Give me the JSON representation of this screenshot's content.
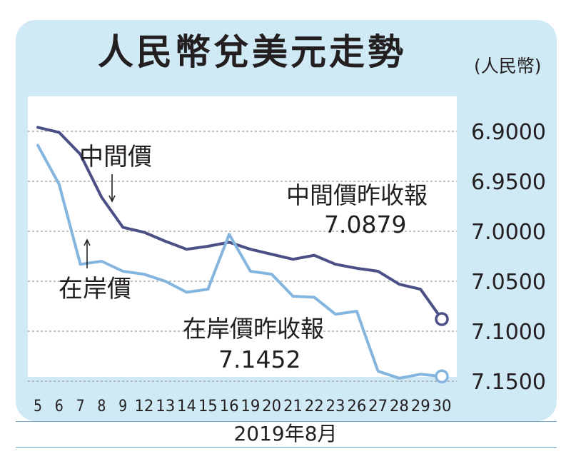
{
  "title": "人民幣兌美元走勢",
  "unit_label": "(人民幣)",
  "xlabel": "2019年8月",
  "colors": {
    "background": "#cfe9f5",
    "mid_price": "#4a4f86",
    "offshore": "#83b5de",
    "grid": "#9a9a9a"
  },
  "annotations": {
    "mid_label": "中間價",
    "offshore_label": "在岸價",
    "mid_close_label": "中間價昨收報",
    "mid_close_value": "7.0879",
    "offshore_close_label": "在岸價昨收報",
    "offshore_close_value": "7.1452"
  },
  "chart_data": {
    "type": "line",
    "title": "人民幣兌美元走勢",
    "xlabel": "2019年8月",
    "ylabel": "(人民幣)",
    "y_inverted": true,
    "ylim": [
      6.88,
      7.17
    ],
    "yticks": [
      "6.9000",
      "6.9500",
      "7.0000",
      "7.0500",
      "7.1000",
      "7.1500"
    ],
    "categories": [
      "5",
      "6",
      "7",
      "8",
      "9",
      "12",
      "13",
      "14",
      "15",
      "16",
      "19",
      "20",
      "21",
      "22",
      "23",
      "26",
      "27",
      "28",
      "29",
      "30"
    ],
    "grid": true,
    "series": [
      {
        "name": "中間價",
        "color": "#4a4f86",
        "values": [
          6.896,
          6.901,
          6.923,
          6.966,
          6.996,
          7.001,
          7.01,
          7.018,
          7.015,
          7.011,
          7.018,
          7.023,
          7.028,
          7.024,
          7.033,
          7.037,
          7.04,
          7.053,
          7.058,
          7.0879
        ]
      },
      {
        "name": "在岸價",
        "color": "#83b5de",
        "values": [
          6.914,
          6.953,
          7.033,
          7.03,
          7.04,
          7.043,
          7.05,
          7.061,
          7.058,
          7.003,
          7.04,
          7.043,
          7.065,
          7.066,
          7.083,
          7.08,
          7.14,
          7.147,
          7.143,
          7.1452
        ]
      }
    ]
  }
}
